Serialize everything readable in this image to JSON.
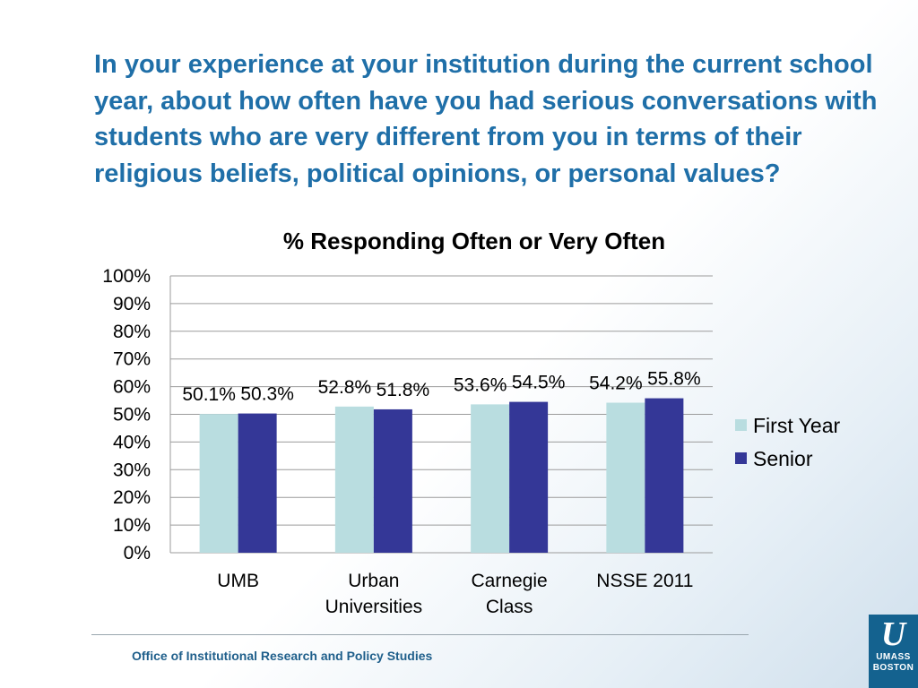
{
  "slide": {
    "question": "In your experience at your institution during the current school year, about how often have you had serious conversations with students who are very different from you in terms of their religious beliefs, political opinions, or personal values?",
    "footer": "Office of Institutional Research and Policy Studies",
    "logo": {
      "line1": "UMASS",
      "line2": "BOSTON"
    }
  },
  "colors": {
    "first_year": "#b9dde0",
    "senior": "#343797",
    "title": "#1f6fa8",
    "gridline": "#9b9b9b"
  },
  "chart_data": {
    "type": "bar",
    "title": "% Responding Often or Very Often",
    "categories": [
      [
        "UMB"
      ],
      [
        "Urban",
        "Universities"
      ],
      [
        "Carnegie",
        "Class"
      ],
      [
        "NSSE 2011"
      ]
    ],
    "series": [
      {
        "name": "First Year",
        "values": [
          50.1,
          52.8,
          53.6,
          54.2
        ],
        "labels": [
          "50.1%",
          "52.8%",
          "53.6%",
          "54.2%"
        ]
      },
      {
        "name": "Senior",
        "values": [
          50.3,
          51.8,
          54.5,
          55.8
        ],
        "labels": [
          "50.3%",
          "51.8%",
          "54.5%",
          "55.8%"
        ]
      }
    ],
    "yticks": [
      "0%",
      "10%",
      "20%",
      "30%",
      "40%",
      "50%",
      "60%",
      "70%",
      "80%",
      "90%",
      "100%"
    ],
    "ylim": [
      0,
      100
    ],
    "grid": true,
    "legend": "right"
  }
}
